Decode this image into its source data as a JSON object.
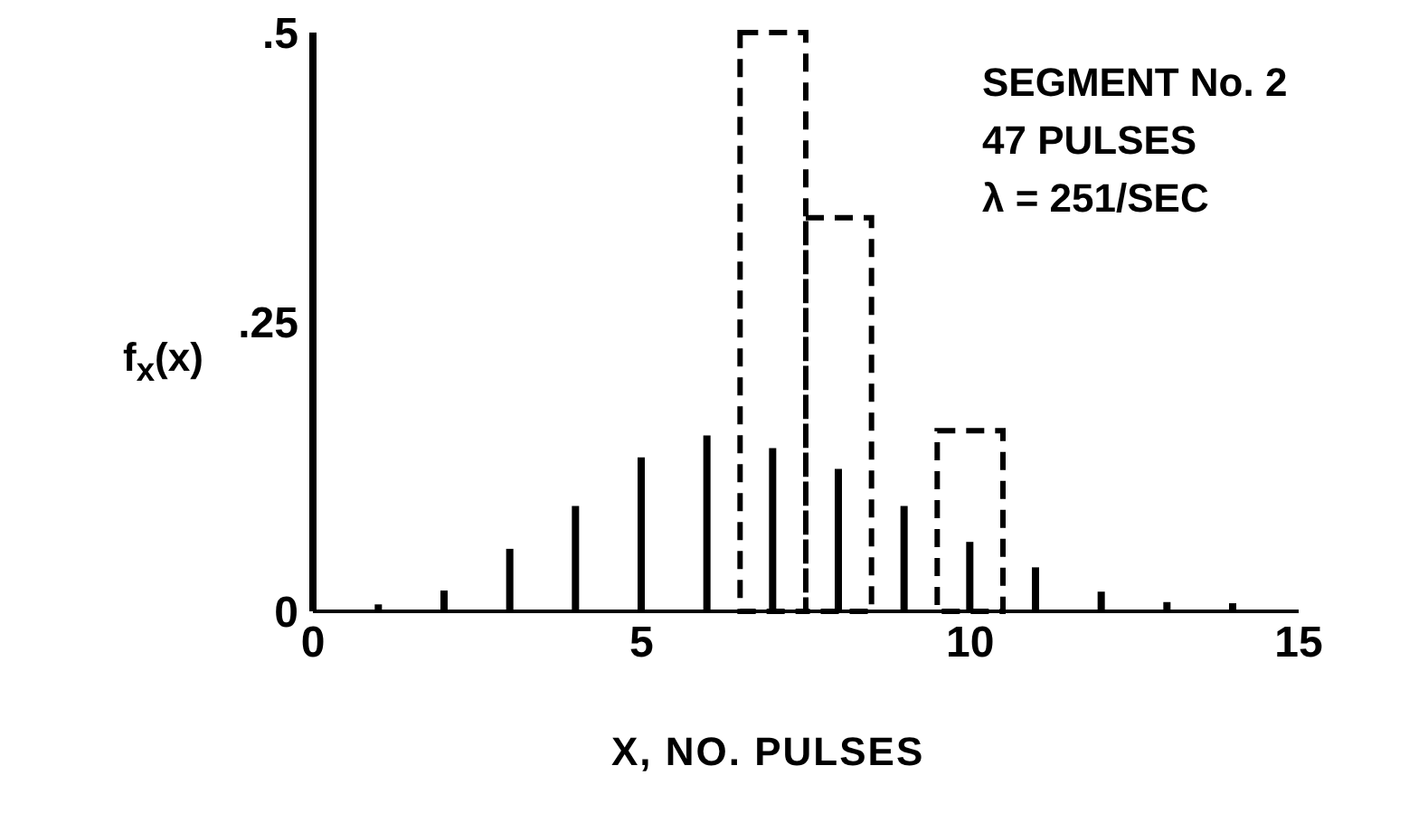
{
  "chart_data": {
    "type": "bar",
    "xlabel": "X, NO. PULSES",
    "ylabel": "f$_{x}$(x)",
    "xlim": [
      0,
      15
    ],
    "xticks": [
      0,
      5,
      10,
      15
    ],
    "ylim": [
      0,
      0.5
    ],
    "yticks": [
      0,
      {
        "value": 0.25,
        "label": ".25"
      },
      {
        "value": 0.5,
        "label": ".5"
      }
    ],
    "grid": false,
    "legend": false,
    "annotations": [
      "SEGMENT No. 2",
      "47 PULSES",
      "λ = 251/SEC"
    ],
    "series": [
      {
        "color": "#000000",
        "x": [
          1,
          2,
          3,
          4,
          5,
          6,
          7,
          8,
          9,
          10,
          11,
          12,
          13,
          14
        ],
        "values": [
          0.006,
          0.018,
          0.054,
          0.091,
          0.133,
          0.152,
          0.141,
          0.123,
          0.091,
          0.06,
          0.038,
          0.017,
          0.008,
          0.007
        ]
      },
      {
        "type": "histogram",
        "color": "#000000",
        "line_style": "dashed",
        "bins": [
          6.5,
          7.5,
          8.5,
          9.5,
          10.5
        ],
        "values": [
          0.5,
          0.34,
          0,
          0.156
        ]
      }
    ]
  }
}
